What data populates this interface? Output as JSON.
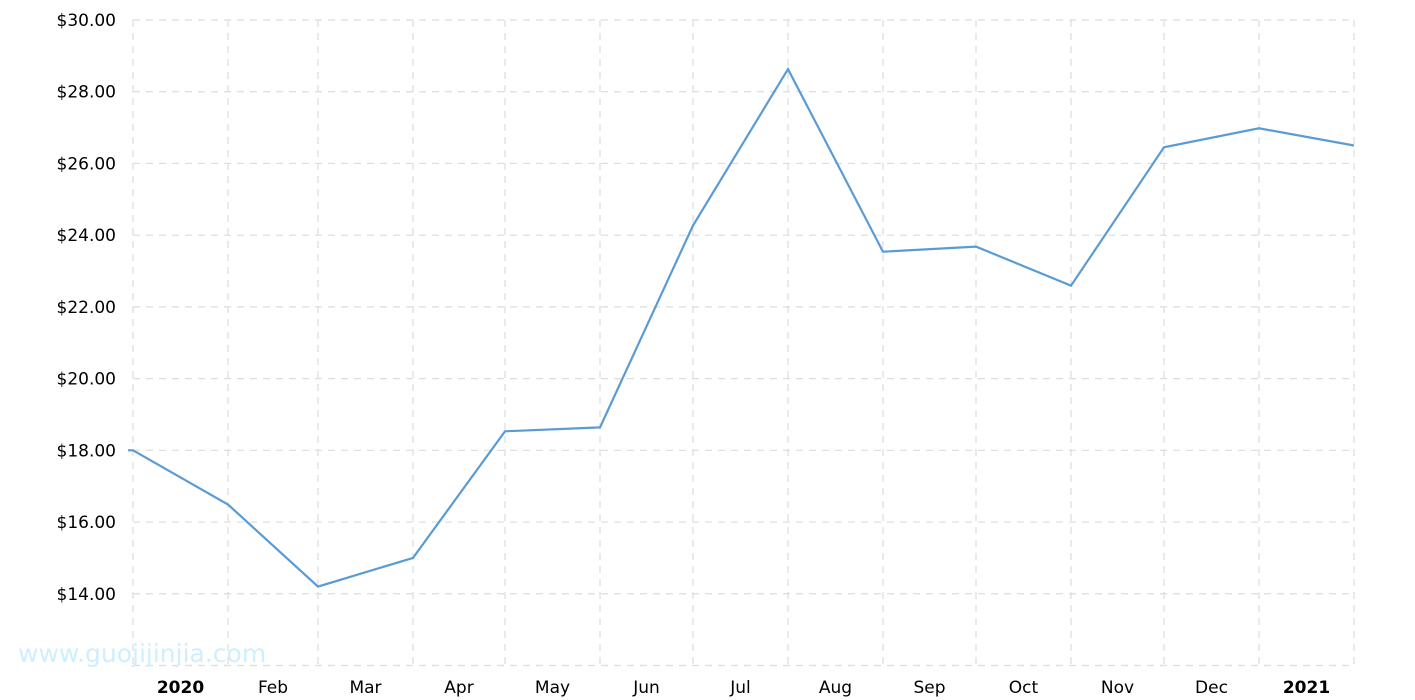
{
  "chart_data": {
    "type": "line",
    "title": "",
    "xlabel": "",
    "ylabel": "",
    "x": [
      "2020-01",
      "2020-02",
      "2020-03",
      "2020-04",
      "2020-05",
      "2020-06",
      "2020-07",
      "2020-08",
      "2020-09",
      "2020-10",
      "2020-11",
      "2020-12",
      "2021-01",
      "2021-02"
    ],
    "series": [
      {
        "values": [
          18.0,
          16.49,
          14.2,
          15.0,
          18.53,
          18.64,
          24.27,
          28.63,
          23.54,
          23.68,
          22.59,
          26.45,
          26.98,
          26.5
        ],
        "color": "#5b9bd5"
      }
    ],
    "ylim": [
      12,
      30
    ],
    "yticks": [
      14,
      16,
      18,
      20,
      22,
      24,
      26,
      28,
      30
    ],
    "ytick_labels": [
      "$14.00",
      "$16.00",
      "$18.00",
      "$20.00",
      "$22.00",
      "$24.00",
      "$26.00",
      "$28.00",
      "$30.00"
    ],
    "xtick_labels": [
      {
        "label": "2020",
        "bold": true
      },
      {
        "label": "Feb",
        "bold": false
      },
      {
        "label": "Mar",
        "bold": false
      },
      {
        "label": "Apr",
        "bold": false
      },
      {
        "label": "May",
        "bold": false
      },
      {
        "label": "Jun",
        "bold": false
      },
      {
        "label": "Jul",
        "bold": false
      },
      {
        "label": "Aug",
        "bold": false
      },
      {
        "label": "Sep",
        "bold": false
      },
      {
        "label": "Oct",
        "bold": false
      },
      {
        "label": "Nov",
        "bold": false
      },
      {
        "label": "Dec",
        "bold": false
      },
      {
        "label": "2021",
        "bold": true
      }
    ],
    "grid": true,
    "legend": "none"
  },
  "watermark": "www.guojijinjia.com"
}
